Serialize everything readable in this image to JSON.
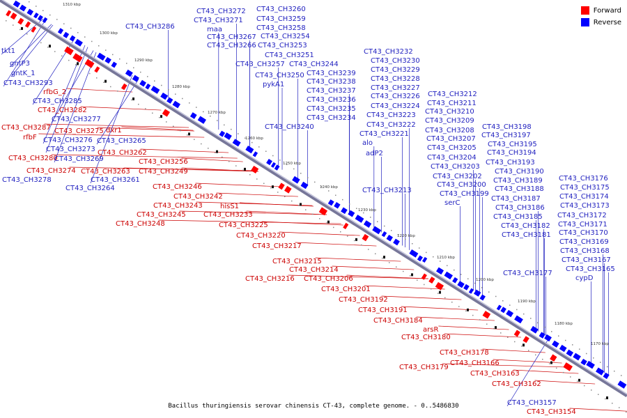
{
  "caption": "Bacillus thuringiensis serovar chinensis CT-43, complete genome. - 0..5486830",
  "legend": {
    "forward": {
      "label": "Forward",
      "color": "#ff0000"
    },
    "reverse": {
      "label": "Reverse",
      "color": "#0000ff"
    }
  },
  "colors": {
    "forward_label": "#cc0000",
    "reverse_label": "#1f1fbf",
    "backbone": "#4444aa"
  },
  "ticks": [
    "1170 kbp",
    "1180 kbp",
    "1190 kbp",
    "1200 kbp",
    "1210 kbp",
    "1220 kbp",
    "1230 kbp",
    "1240 kbp",
    "1250 kbp",
    "1260 kbp",
    "1270 kbp",
    "1280 kbp",
    "1290 kbp",
    "1300 kbp",
    "1310 kbp"
  ],
  "labels": [
    {
      "text": "tkt1",
      "strand": "reverse"
    },
    {
      "text": "gntP3",
      "strand": "reverse"
    },
    {
      "text": "gntK_1",
      "strand": "reverse"
    },
    {
      "text": "CT43_CH3293",
      "strand": "reverse"
    },
    {
      "text": "rfbG_2",
      "strand": "forward"
    },
    {
      "text": "CT43_CH3285",
      "strand": "reverse"
    },
    {
      "text": "CT43_CH3282",
      "strand": "forward"
    },
    {
      "text": "CT43_CH3277",
      "strand": "reverse"
    },
    {
      "text": "CT43_CH3287",
      "strand": "forward"
    },
    {
      "text": "CT43_CH3275",
      "strand": "forward"
    },
    {
      "text": "dxr1",
      "strand": "forward"
    },
    {
      "text": "rfbF",
      "strand": "forward"
    },
    {
      "text": "CT43_CH3276",
      "strand": "reverse"
    },
    {
      "text": "CT43_CH3265",
      "strand": "reverse"
    },
    {
      "text": "CT43_CH3273",
      "strand": "reverse"
    },
    {
      "text": "CT43_CH3262",
      "strand": "forward"
    },
    {
      "text": "CT43_CH3280",
      "strand": "forward"
    },
    {
      "text": "CT43_CH3269",
      "strand": "reverse"
    },
    {
      "text": "CT43_CH3256",
      "strand": "forward"
    },
    {
      "text": "CT43_CH3274",
      "strand": "forward"
    },
    {
      "text": "CT43_CH3263",
      "strand": "forward"
    },
    {
      "text": "CT43_CH3249",
      "strand": "forward"
    },
    {
      "text": "CT43_CH3278",
      "strand": "reverse"
    },
    {
      "text": "CT43_CH3261",
      "strand": "reverse"
    },
    {
      "text": "CT43_CH3264",
      "strand": "reverse"
    },
    {
      "text": "CT43_CH3246",
      "strand": "forward"
    },
    {
      "text": "CT43_CH3242",
      "strand": "forward"
    },
    {
      "text": "CT43_CH3243",
      "strand": "forward"
    },
    {
      "text": "hisS1",
      "strand": "forward"
    },
    {
      "text": "CT43_CH3245",
      "strand": "forward"
    },
    {
      "text": "CT43_CH3233",
      "strand": "forward"
    },
    {
      "text": "CT43_CH3248",
      "strand": "forward"
    },
    {
      "text": "CT43_CH3225",
      "strand": "forward"
    },
    {
      "text": "CT43_CH3220",
      "strand": "forward"
    },
    {
      "text": "CT43_CH3217",
      "strand": "forward"
    },
    {
      "text": "CT43_CH3215",
      "strand": "forward"
    },
    {
      "text": "CT43_CH3214",
      "strand": "forward"
    },
    {
      "text": "CT43_CH3216",
      "strand": "forward"
    },
    {
      "text": "CT43_CH3206",
      "strand": "forward"
    },
    {
      "text": "CT43_CH3201",
      "strand": "forward"
    },
    {
      "text": "CT43_CH3192",
      "strand": "forward"
    },
    {
      "text": "CT43_CH3191",
      "strand": "forward"
    },
    {
      "text": "CT43_CH3184",
      "strand": "forward"
    },
    {
      "text": "arsR",
      "strand": "forward"
    },
    {
      "text": "CT43_CH3180",
      "strand": "forward"
    },
    {
      "text": "CT43_CH3178",
      "strand": "forward"
    },
    {
      "text": "CT43_CH3179",
      "strand": "forward"
    },
    {
      "text": "CT43_CH3166",
      "strand": "forward"
    },
    {
      "text": "CT43_CH3163",
      "strand": "forward"
    },
    {
      "text": "CT43_CH3162",
      "strand": "forward"
    },
    {
      "text": "CT43_CH3157",
      "strand": "reverse"
    },
    {
      "text": "CT43_CH3154",
      "strand": "forward"
    },
    {
      "text": "CT43_CH3286",
      "strand": "reverse"
    },
    {
      "text": "CT43_CH3272",
      "strand": "reverse"
    },
    {
      "text": "CT43_CH3271",
      "strand": "reverse"
    },
    {
      "text": "maa",
      "strand": "reverse"
    },
    {
      "text": "CT43_CH3267",
      "strand": "reverse"
    },
    {
      "text": "CT43_CH3266",
      "strand": "reverse"
    },
    {
      "text": "CT43_CH3260",
      "strand": "reverse"
    },
    {
      "text": "CT43_CH3259",
      "strand": "reverse"
    },
    {
      "text": "CT43_CH3258",
      "strand": "reverse"
    },
    {
      "text": "CT43_CH3254",
      "strand": "reverse"
    },
    {
      "text": "CT43_CH3253",
      "strand": "reverse"
    },
    {
      "text": "CT43_CH3251",
      "strand": "reverse"
    },
    {
      "text": "CT43_CH3257",
      "strand": "reverse"
    },
    {
      "text": "CT43_CH3244",
      "strand": "reverse"
    },
    {
      "text": "CT43_CH3250",
      "strand": "reverse"
    },
    {
      "text": "pykA1",
      "strand": "reverse"
    },
    {
      "text": "CT43_CH3239",
      "strand": "reverse"
    },
    {
      "text": "CT43_CH3238",
      "strand": "reverse"
    },
    {
      "text": "CT43_CH3237",
      "strand": "reverse"
    },
    {
      "text": "CT43_CH3236",
      "strand": "reverse"
    },
    {
      "text": "CT43_CH3235",
      "strand": "reverse"
    },
    {
      "text": "CT43_CH3234",
      "strand": "reverse"
    },
    {
      "text": "CT43_CH3240",
      "strand": "reverse"
    },
    {
      "text": "CT43_CH3232",
      "strand": "reverse"
    },
    {
      "text": "CT43_CH3230",
      "strand": "reverse"
    },
    {
      "text": "CT43_CH3229",
      "strand": "reverse"
    },
    {
      "text": "CT43_CH3228",
      "strand": "reverse"
    },
    {
      "text": "CT43_CH3227",
      "strand": "reverse"
    },
    {
      "text": "CT43_CH3226",
      "strand": "reverse"
    },
    {
      "text": "CT43_CH3224",
      "strand": "reverse"
    },
    {
      "text": "CT43_CH3223",
      "strand": "reverse"
    },
    {
      "text": "CT43_CH3222",
      "strand": "reverse"
    },
    {
      "text": "CT43_CH3221",
      "strand": "reverse"
    },
    {
      "text": "alo",
      "strand": "reverse"
    },
    {
      "text": "adP2",
      "strand": "reverse"
    },
    {
      "text": "CT43_CH3213",
      "strand": "reverse"
    },
    {
      "text": "CT43_CH3212",
      "strand": "reverse"
    },
    {
      "text": "CT43_CH3211",
      "strand": "reverse"
    },
    {
      "text": "CT43_CH3210",
      "strand": "reverse"
    },
    {
      "text": "CT43_CH3209",
      "strand": "reverse"
    },
    {
      "text": "CT43_CH3208",
      "strand": "reverse"
    },
    {
      "text": "CT43_CH3207",
      "strand": "reverse"
    },
    {
      "text": "CT43_CH3205",
      "strand": "reverse"
    },
    {
      "text": "CT43_CH3204",
      "strand": "reverse"
    },
    {
      "text": "CT43_CH3203",
      "strand": "reverse"
    },
    {
      "text": "CT43_CH3202",
      "strand": "reverse"
    },
    {
      "text": "CT43_CH3200",
      "strand": "reverse"
    },
    {
      "text": "CT43_CH3199",
      "strand": "reverse"
    },
    {
      "text": "serC",
      "strand": "reverse"
    },
    {
      "text": "CT43_CH3198",
      "strand": "reverse"
    },
    {
      "text": "CT43_CH3197",
      "strand": "reverse"
    },
    {
      "text": "CT43_CH3195",
      "strand": "reverse"
    },
    {
      "text": "CT43_CH3194",
      "strand": "reverse"
    },
    {
      "text": "CT43_CH3193",
      "strand": "reverse"
    },
    {
      "text": "CT43_CH3190",
      "strand": "reverse"
    },
    {
      "text": "CT43_CH3189",
      "strand": "reverse"
    },
    {
      "text": "CT43_CH3188",
      "strand": "reverse"
    },
    {
      "text": "CT43_CH3187",
      "strand": "reverse"
    },
    {
      "text": "CT43_CH3186",
      "strand": "reverse"
    },
    {
      "text": "CT43_CH3185",
      "strand": "reverse"
    },
    {
      "text": "CT43_CH3182",
      "strand": "reverse"
    },
    {
      "text": "CT43_CH3181",
      "strand": "reverse"
    },
    {
      "text": "CT43_CH3177",
      "strand": "reverse"
    },
    {
      "text": "CT43_CH3176",
      "strand": "reverse"
    },
    {
      "text": "CT43_CH3175",
      "strand": "reverse"
    },
    {
      "text": "CT43_CH3174",
      "strand": "reverse"
    },
    {
      "text": "CT43_CH3173",
      "strand": "reverse"
    },
    {
      "text": "CT43_CH3172",
      "strand": "reverse"
    },
    {
      "text": "CT43_CH3171",
      "strand": "reverse"
    },
    {
      "text": "CT43_CH3170",
      "strand": "reverse"
    },
    {
      "text": "CT43_CH3169",
      "strand": "reverse"
    },
    {
      "text": "CT43_CH3168",
      "strand": "reverse"
    },
    {
      "text": "CT43_CH3167",
      "strand": "reverse"
    },
    {
      "text": "CT43_CH3165",
      "strand": "reverse"
    },
    {
      "text": "cypD",
      "strand": "reverse"
    }
  ]
}
